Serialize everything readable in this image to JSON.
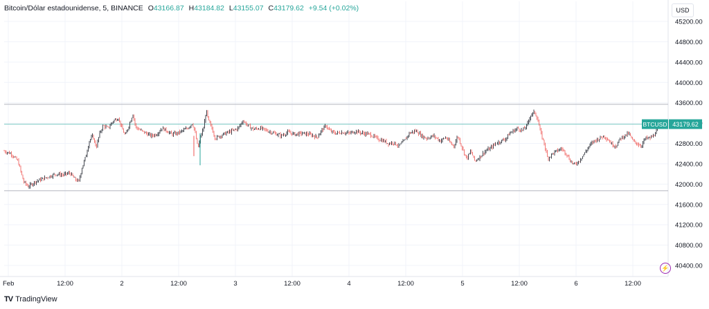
{
  "legend": {
    "symbol": "Bitcoin/Dólar estadounidense, 5, BINANCE",
    "open_label": "O",
    "open": "43166.87",
    "high_label": "H",
    "high": "43184.82",
    "low_label": "L",
    "low": "43155.07",
    "close_label": "C",
    "close": "43179.62",
    "change": "+9.54 (+0.02%)"
  },
  "currency_button": "USD",
  "price_tag": {
    "symbol": "BTCUSD",
    "price": "43179.62"
  },
  "brand": "TradingView",
  "colors": {
    "up": "#26a69a",
    "down": "#ef5350",
    "candle_body": "#131722",
    "grid": "#f0f3fa",
    "range_line": "#b2b5be",
    "accent": "#26a69a",
    "alert": "#9c27b0"
  },
  "icons": {
    "alert": "lightning-icon",
    "logo": "tradingview-logo-icon"
  },
  "chart_data": {
    "type": "candlestick",
    "y_ticks": [
      "45200.00",
      "44800.00",
      "44400.00",
      "44000.00",
      "43600.00",
      "43200.00",
      "42800.00",
      "42400.00",
      "42000.00",
      "41600.00",
      "41200.00",
      "40800.00",
      "40400.00"
    ],
    "x_ticks": [
      "Feb",
      "12:00",
      "2",
      "12:00",
      "3",
      "12:00",
      "4",
      "12:00",
      "5",
      "12:00",
      "6",
      "12:00"
    ],
    "ylim": [
      40200,
      45400
    ],
    "range_lines": [
      43570,
      41870
    ],
    "last_price": 43179.62,
    "price_series": [
      [
        0,
        42650
      ],
      [
        10,
        42600
      ],
      [
        20,
        42450
      ],
      [
        28,
        42050
      ],
      [
        35,
        41950
      ],
      [
        45,
        42050
      ],
      [
        55,
        42100
      ],
      [
        65,
        42150
      ],
      [
        75,
        42200
      ],
      [
        85,
        42180
      ],
      [
        95,
        42220
      ],
      [
        102,
        42100
      ],
      [
        108,
        42050
      ],
      [
        112,
        42300
      ],
      [
        118,
        42550
      ],
      [
        123,
        42850
      ],
      [
        128,
        42950
      ],
      [
        133,
        42720
      ],
      [
        138,
        43000
      ],
      [
        143,
        43150
      ],
      [
        150,
        43100
      ],
      [
        158,
        43250
      ],
      [
        165,
        43300
      ],
      [
        170,
        43100
      ],
      [
        175,
        42950
      ],
      [
        180,
        43150
      ],
      [
        186,
        43380
      ],
      [
        190,
        43120
      ],
      [
        198,
        43050
      ],
      [
        205,
        43000
      ],
      [
        212,
        42950
      ],
      [
        220,
        42980
      ],
      [
        228,
        43100
      ],
      [
        235,
        43050
      ],
      [
        242,
        42980
      ],
      [
        250,
        43000
      ],
      [
        258,
        43050
      ],
      [
        265,
        43100
      ],
      [
        272,
        43200
      ],
      [
        276,
        43000
      ],
      [
        280,
        42700
      ],
      [
        284,
        42950
      ],
      [
        288,
        43100
      ],
      [
        292,
        43450
      ],
      [
        295,
        43250
      ],
      [
        300,
        43100
      ],
      [
        305,
        42900
      ],
      [
        312,
        42950
      ],
      [
        320,
        43000
      ],
      [
        330,
        43050
      ],
      [
        338,
        43100
      ],
      [
        345,
        43250
      ],
      [
        352,
        43150
      ],
      [
        360,
        43080
      ],
      [
        370,
        43100
      ],
      [
        380,
        43050
      ],
      [
        390,
        43000
      ],
      [
        400,
        42950
      ],
      [
        410,
        43020
      ],
      [
        420,
        42980
      ],
      [
        430,
        43000
      ],
      [
        440,
        42980
      ],
      [
        447,
        42950
      ],
      [
        452,
        42920
      ],
      [
        458,
        43050
      ],
      [
        465,
        43150
      ],
      [
        470,
        43050
      ],
      [
        478,
        43000
      ],
      [
        488,
        43020
      ],
      [
        498,
        43000
      ],
      [
        508,
        43040
      ],
      [
        518,
        43000
      ],
      [
        528,
        42980
      ],
      [
        538,
        42900
      ],
      [
        548,
        42850
      ],
      [
        555,
        42800
      ],
      [
        562,
        42820
      ],
      [
        570,
        42750
      ],
      [
        578,
        42850
      ],
      [
        585,
        43000
      ],
      [
        595,
        43050
      ],
      [
        603,
        42950
      ],
      [
        610,
        42900
      ],
      [
        620,
        42950
      ],
      [
        630,
        42850
      ],
      [
        638,
        42920
      ],
      [
        645,
        42800
      ],
      [
        650,
        42750
      ],
      [
        655,
        42950
      ],
      [
        662,
        42700
      ],
      [
        668,
        42500
      ],
      [
        674,
        42650
      ],
      [
        680,
        42450
      ],
      [
        688,
        42550
      ],
      [
        695,
        42650
      ],
      [
        702,
        42700
      ],
      [
        710,
        42800
      ],
      [
        718,
        42850
      ],
      [
        725,
        42900
      ],
      [
        730,
        43000
      ],
      [
        736,
        43050
      ],
      [
        742,
        43100
      ],
      [
        748,
        43050
      ],
      [
        755,
        43150
      ],
      [
        760,
        43350
      ],
      [
        766,
        43420
      ],
      [
        770,
        43300
      ],
      [
        775,
        43000
      ],
      [
        780,
        42800
      ],
      [
        785,
        42500
      ],
      [
        792,
        42600
      ],
      [
        798,
        42650
      ],
      [
        805,
        42700
      ],
      [
        812,
        42600
      ],
      [
        818,
        42450
      ],
      [
        824,
        42380
      ],
      [
        830,
        42450
      ],
      [
        838,
        42600
      ],
      [
        845,
        42750
      ],
      [
        852,
        42850
      ],
      [
        860,
        42900
      ],
      [
        866,
        42950
      ],
      [
        872,
        42880
      ],
      [
        878,
        42780
      ],
      [
        884,
        42750
      ],
      [
        890,
        42900
      ],
      [
        896,
        42950
      ],
      [
        902,
        43000
      ],
      [
        908,
        42850
      ],
      [
        914,
        42800
      ],
      [
        920,
        42750
      ],
      [
        926,
        42900
      ],
      [
        932,
        42900
      ],
      [
        938,
        42950
      ],
      [
        944,
        43100
      ],
      [
        948,
        43180
      ]
    ]
  }
}
